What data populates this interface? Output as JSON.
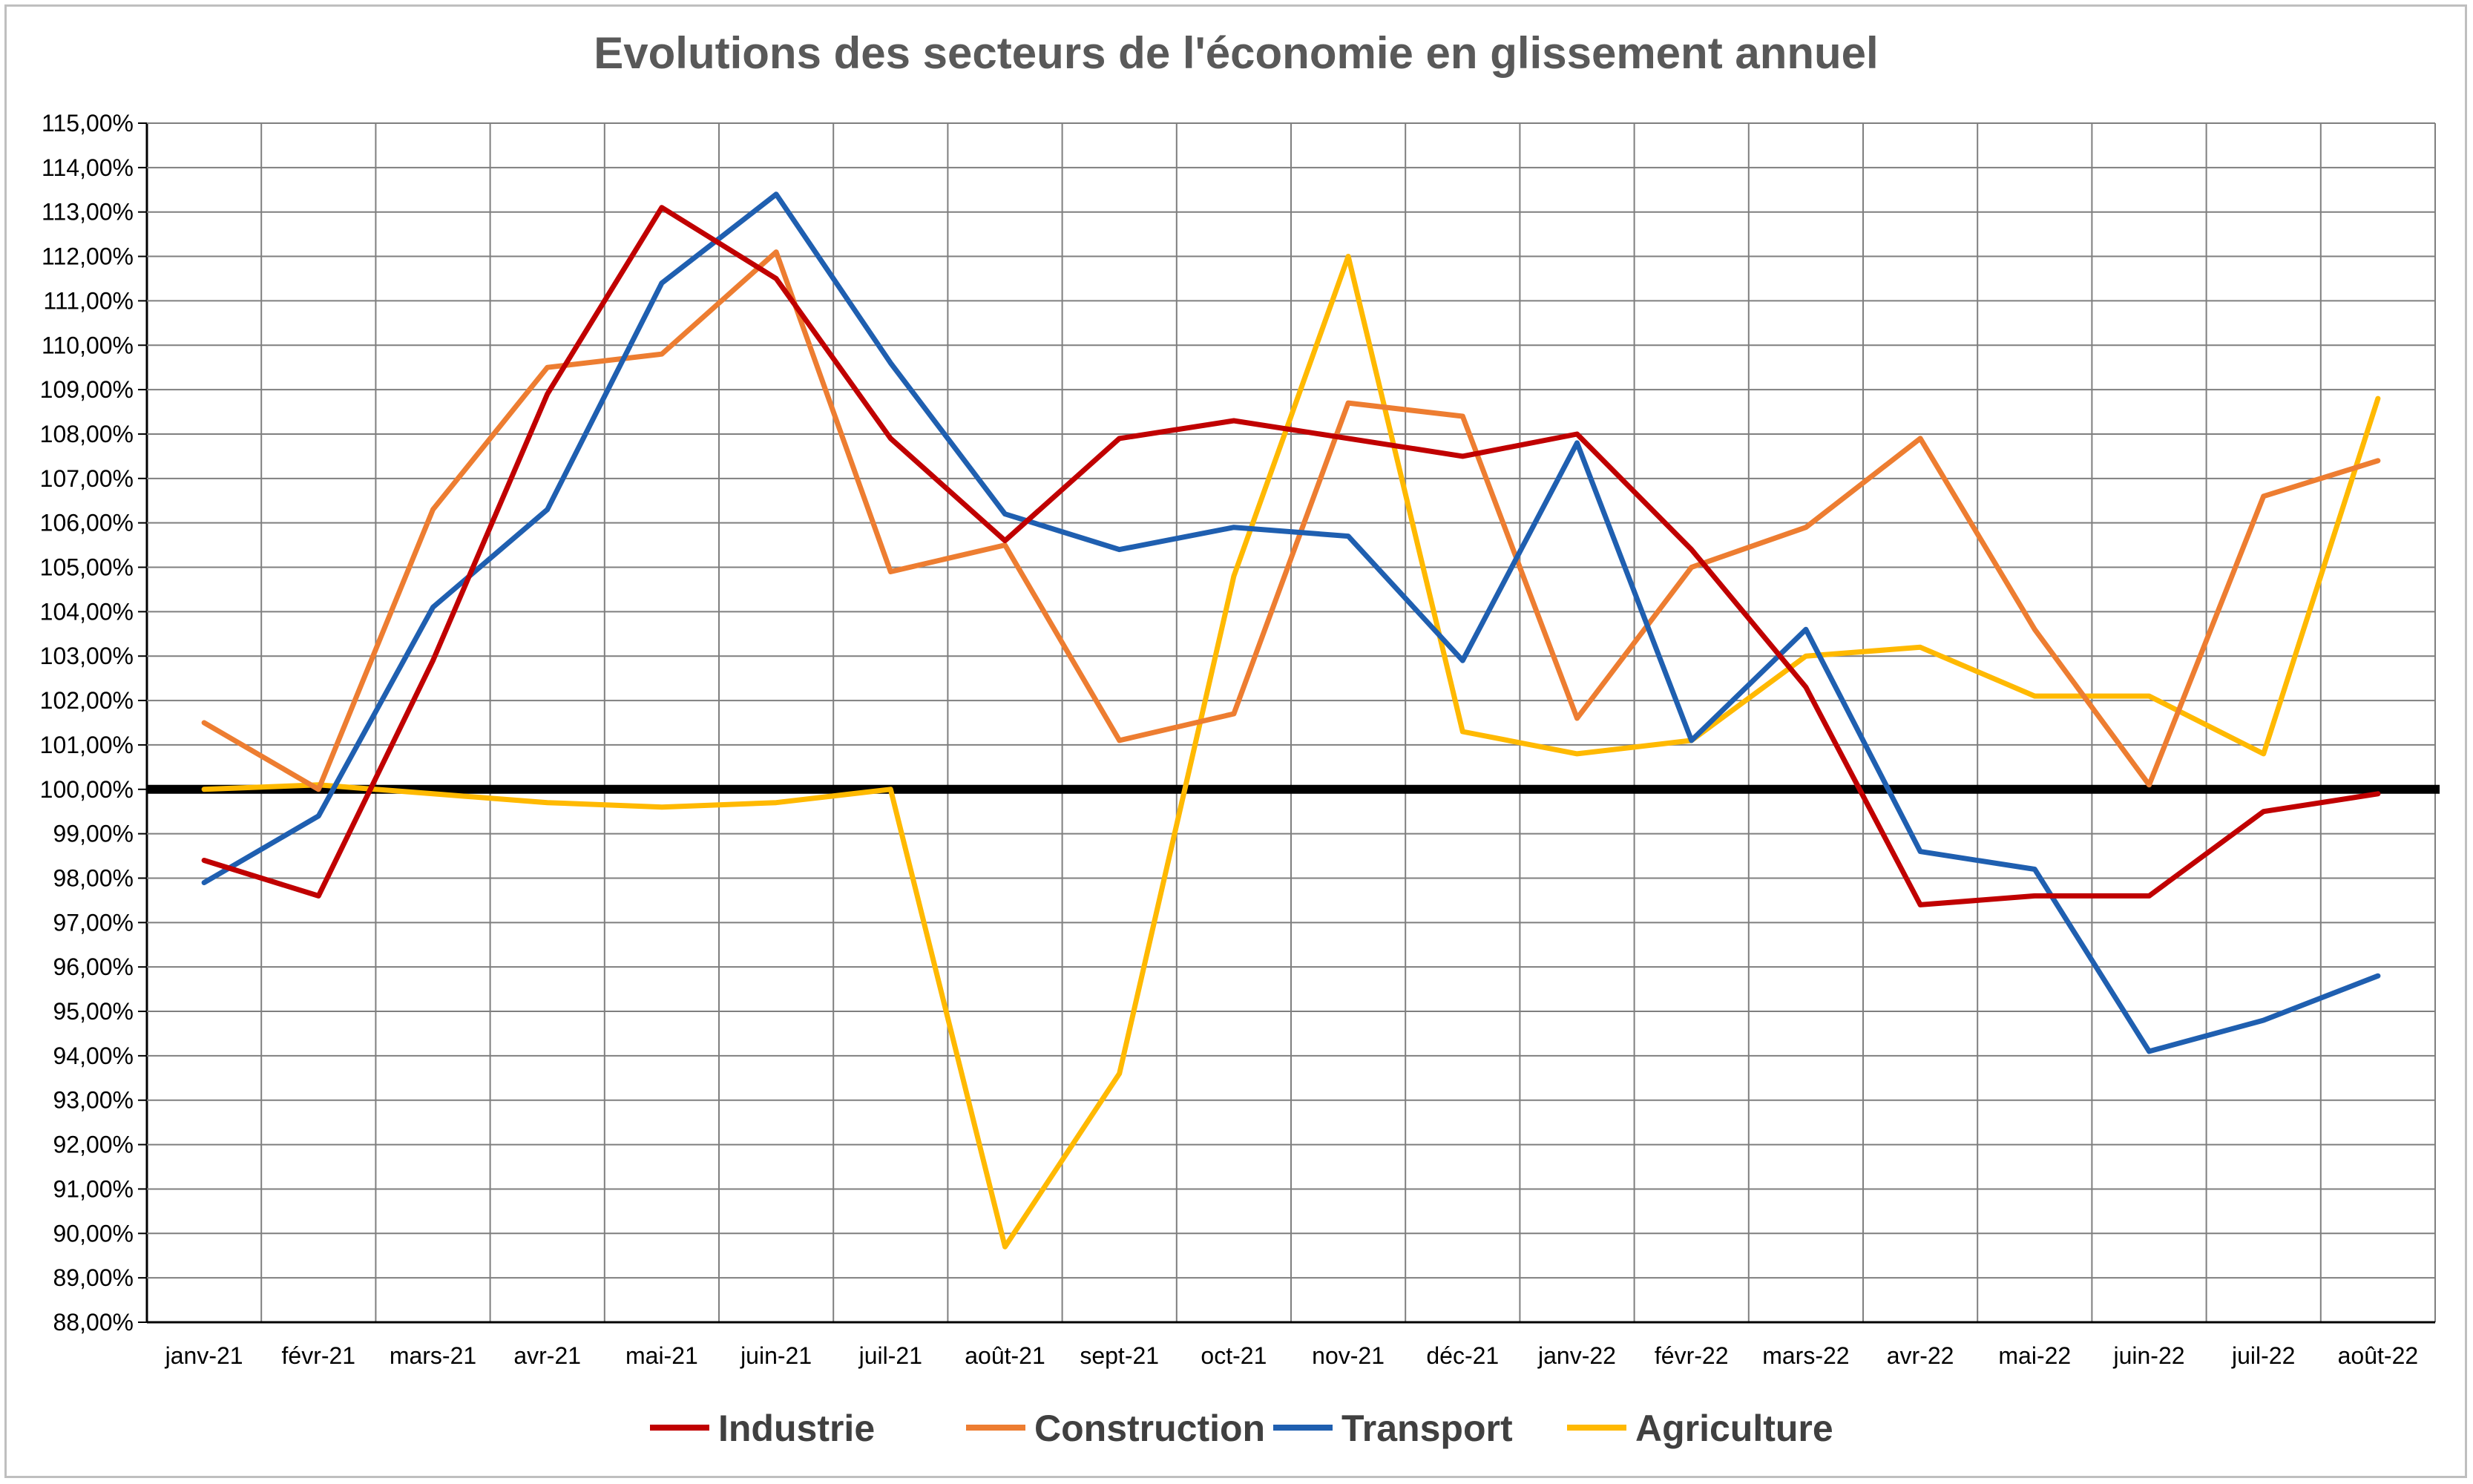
{
  "chart_data": {
    "type": "line",
    "title": "Evolutions des secteurs de l'économie en glissement annuel",
    "xlabel": "",
    "ylabel": "",
    "ylim": [
      88,
      115
    ],
    "y_tick_step": 1,
    "y_tick_format": "percent_2dec_fr",
    "reference_line": 100,
    "grid": true,
    "legend_position": "bottom",
    "categories": [
      "janv-21",
      "févr-21",
      "mars-21",
      "avr-21",
      "mai-21",
      "juin-21",
      "juil-21",
      "août-21",
      "sept-21",
      "oct-21",
      "nov-21",
      "déc-21",
      "janv-22",
      "févr-22",
      "mars-22",
      "avr-22",
      "mai-22",
      "juin-22",
      "juil-22",
      "août-22"
    ],
    "y_tick_labels": [
      "88,00%",
      "89,00%",
      "90,00%",
      "91,00%",
      "92,00%",
      "93,00%",
      "94,00%",
      "95,00%",
      "96,00%",
      "97,00%",
      "98,00%",
      "99,00%",
      "100,00%",
      "101,00%",
      "102,00%",
      "103,00%",
      "104,00%",
      "105,00%",
      "106,00%",
      "107,00%",
      "108,00%",
      "109,00%",
      "110,00%",
      "111,00%",
      "112,00%",
      "113,00%",
      "114,00%",
      "115,00%"
    ],
    "series": [
      {
        "name": "Industrie",
        "color": "#C00000",
        "values": [
          98.4,
          97.6,
          102.9,
          108.9,
          113.1,
          111.5,
          107.9,
          105.6,
          107.9,
          108.3,
          107.9,
          107.5,
          108.0,
          105.4,
          102.3,
          97.4,
          97.6,
          97.6,
          99.5,
          99.9
        ]
      },
      {
        "name": "Construction",
        "color": "#ED7D31",
        "values": [
          101.5,
          100.0,
          106.3,
          109.5,
          109.8,
          112.1,
          104.9,
          105.5,
          101.1,
          101.7,
          108.7,
          108.4,
          101.6,
          105.0,
          105.9,
          107.9,
          103.6,
          100.1,
          106.6,
          107.4
        ]
      },
      {
        "name": "Transport",
        "color": "#1F5FB0",
        "values": [
          97.9,
          99.4,
          104.1,
          106.3,
          111.4,
          113.4,
          109.6,
          106.2,
          105.4,
          105.9,
          105.7,
          102.9,
          107.8,
          101.1,
          103.6,
          98.6,
          98.2,
          94.1,
          94.8,
          95.8
        ]
      },
      {
        "name": "Agriculture",
        "color": "#FFB900",
        "values": [
          100.0,
          100.1,
          99.9,
          99.7,
          99.6,
          99.7,
          100.0,
          89.7,
          93.6,
          104.8,
          112.0,
          101.3,
          100.8,
          101.1,
          103.0,
          103.2,
          102.1,
          102.1,
          100.8,
          108.8
        ]
      }
    ]
  }
}
